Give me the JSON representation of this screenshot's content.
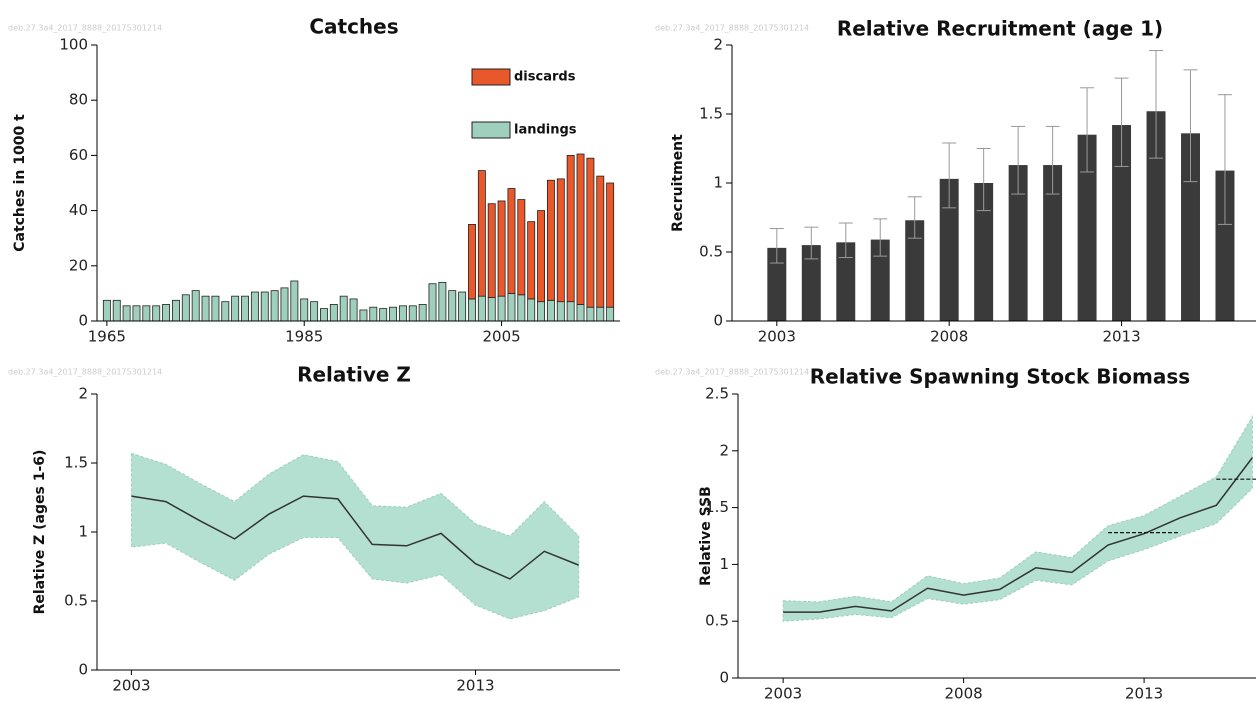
{
  "chart_data": [
    {
      "type": "stacked_bar",
      "title": "Catches",
      "watermark": "deb.27.3a4_2017_8888_20175301214",
      "y_label": "Catches in 1000 t",
      "x": [
        1965,
        1966,
        1967,
        1968,
        1969,
        1970,
        1971,
        1972,
        1973,
        1974,
        1975,
        1976,
        1977,
        1978,
        1979,
        1980,
        1981,
        1982,
        1983,
        1984,
        1985,
        1986,
        1987,
        1988,
        1989,
        1990,
        1991,
        1992,
        1993,
        1994,
        1995,
        1996,
        1997,
        1998,
        1999,
        2000,
        2001,
        2002,
        2003,
        2004,
        2005,
        2006,
        2007,
        2008,
        2009,
        2010,
        2011,
        2012,
        2013,
        2014,
        2015,
        2016
      ],
      "xlim": [
        1964,
        2017
      ],
      "xticks": [
        1965,
        1985,
        2005
      ],
      "ylim": [
        0,
        100
      ],
      "yticks": [
        0,
        20,
        40,
        60,
        80,
        100
      ],
      "legend": "top-right",
      "series": [
        {
          "name": "discards",
          "color": "#e8582a",
          "values": [
            null,
            null,
            null,
            null,
            null,
            null,
            null,
            null,
            null,
            null,
            null,
            null,
            null,
            null,
            null,
            null,
            null,
            null,
            null,
            null,
            null,
            null,
            null,
            null,
            null,
            null,
            null,
            null,
            null,
            null,
            null,
            null,
            null,
            null,
            null,
            null,
            null,
            27,
            45.5,
            34,
            34.5,
            38,
            34.5,
            28,
            33,
            43.5,
            44.5,
            53,
            54.5,
            54,
            47.5,
            45
          ]
        },
        {
          "name": "landings",
          "color": "#9fcfbd",
          "values": [
            7.5,
            7.5,
            5.5,
            5.5,
            5.5,
            5.5,
            6,
            7.5,
            9.5,
            11,
            9,
            9,
            7,
            9,
            9,
            10.5,
            10.5,
            11,
            12,
            14.5,
            8,
            7,
            4.5,
            6,
            9,
            8,
            4,
            5,
            4.5,
            5,
            5.5,
            5.5,
            6,
            13.5,
            14,
            11,
            10.5,
            8,
            9,
            8.5,
            9,
            10,
            9.5,
            8,
            7,
            7.5,
            7,
            7,
            6,
            5,
            5,
            5
          ]
        }
      ]
    },
    {
      "type": "bar",
      "title": "Relative Recruitment (age 1)",
      "watermark": "deb.27.3a4_2017_8888_20175301214",
      "y_label": "Recruitment",
      "x": [
        2003,
        2004,
        2005,
        2006,
        2007,
        2008,
        2009,
        2010,
        2011,
        2012,
        2013,
        2014,
        2015,
        2016
      ],
      "xlim": [
        2001.7,
        2016.9
      ],
      "xticks": [
        2003,
        2008,
        2013
      ],
      "ylim": [
        0,
        2
      ],
      "yticks": [
        0,
        0.5,
        1,
        1.5,
        2
      ],
      "color": "#3a3a3a",
      "error_color": "#999999",
      "values": [
        0.53,
        0.55,
        0.57,
        0.59,
        0.73,
        1.03,
        1.0,
        1.13,
        1.13,
        1.35,
        1.42,
        1.52,
        1.36,
        1.09
      ],
      "upper": [
        0.67,
        0.68,
        0.71,
        0.74,
        0.9,
        1.29,
        1.25,
        1.41,
        1.41,
        1.69,
        1.76,
        1.96,
        1.82,
        1.64
      ],
      "lower": [
        0.42,
        0.45,
        0.46,
        0.47,
        0.6,
        0.82,
        0.8,
        0.92,
        0.92,
        1.08,
        1.12,
        1.18,
        1.01,
        0.7
      ]
    },
    {
      "type": "line",
      "title": "Relative Z",
      "watermark": "deb.27.3a4_2017_8888_20175301214",
      "y_label": "Relative Z (ages 1-6)",
      "x": [
        2003,
        2004,
        2005,
        2006,
        2007,
        2008,
        2009,
        2010,
        2011,
        2012,
        2013,
        2014,
        2015,
        2016
      ],
      "xlim": [
        2002,
        2017.2
      ],
      "xticks": [
        2003,
        2013
      ],
      "ylim": [
        0,
        2
      ],
      "yticks": [
        0,
        0.5,
        1,
        1.5,
        2
      ],
      "color": "#333333",
      "band_color": "#b3e0d1",
      "values": [
        1.26,
        1.22,
        1.08,
        0.95,
        1.13,
        1.26,
        1.24,
        0.91,
        0.9,
        0.99,
        0.77,
        0.66,
        0.86,
        0.76
      ],
      "upper": [
        1.57,
        1.49,
        1.35,
        1.22,
        1.42,
        1.56,
        1.51,
        1.19,
        1.18,
        1.28,
        1.06,
        0.97,
        1.22,
        0.97
      ],
      "lower": [
        0.89,
        0.92,
        0.78,
        0.65,
        0.84,
        0.96,
        0.96,
        0.66,
        0.63,
        0.69,
        0.47,
        0.37,
        0.43,
        0.53
      ]
    },
    {
      "type": "line",
      "title": "Relative Spawning Stock Biomass",
      "watermark": "deb.27.3a4_2017_8888_20175301214",
      "y_label": "Relative SSB",
      "x": [
        2003,
        2004,
        2005,
        2006,
        2007,
        2008,
        2009,
        2010,
        2011,
        2012,
        2013,
        2014,
        2015,
        2016
      ],
      "xlim": [
        2001.75,
        2016.1
      ],
      "xticks": [
        2003,
        2008,
        2013
      ],
      "ylim": [
        0,
        2.5
      ],
      "yticks": [
        0,
        0.5,
        1,
        1.5,
        2,
        2.5
      ],
      "color": "#333333",
      "band_color": "#b3e0d1",
      "values": [
        0.58,
        0.58,
        0.63,
        0.59,
        0.79,
        0.73,
        0.78,
        0.97,
        0.93,
        1.17,
        1.27,
        1.41,
        1.52,
        1.94
      ],
      "upper": [
        0.68,
        0.67,
        0.72,
        0.67,
        0.9,
        0.83,
        0.88,
        1.11,
        1.06,
        1.34,
        1.43,
        1.6,
        1.77,
        2.3
      ],
      "lower": [
        0.5,
        0.52,
        0.56,
        0.53,
        0.7,
        0.65,
        0.69,
        0.86,
        0.82,
        1.03,
        1.13,
        1.25,
        1.36,
        1.67
      ],
      "reference_lines": [
        {
          "x": [
            2012,
            2014
          ],
          "value": 1.28
        },
        {
          "x": [
            2015,
            2017
          ],
          "value": 1.75
        }
      ]
    }
  ]
}
